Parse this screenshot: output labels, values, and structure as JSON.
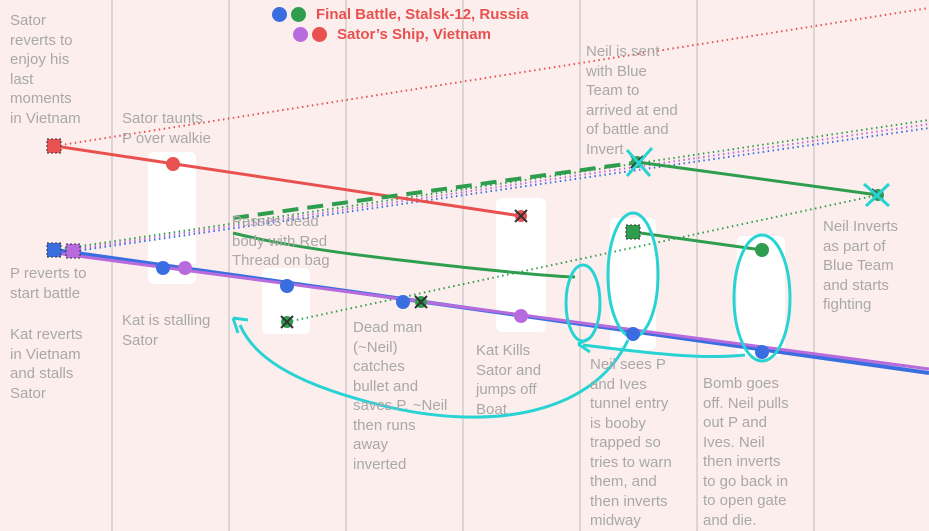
{
  "colors": {
    "red": "#e8514f",
    "green": "#2e9e4e",
    "blue": "#3a6ee0",
    "purple": "#b86bdc",
    "cyan": "#29d3d3",
    "text_gray": "#a8a8a8",
    "legend_red": "#e8514f",
    "background": "#fdeeee",
    "grid": "#bcbcbc",
    "card": "#ffffff"
  },
  "legend": [
    {
      "dots": [
        "blue",
        "green"
      ],
      "label": "Final Battle, Stalsk-12, Russia"
    },
    {
      "dots": [
        "purple",
        "red"
      ],
      "label": "Sator’s Ship, Vietnam"
    }
  ],
  "annotations": {
    "sator_reverts": "Sator\nreverts to\nenjoy his\nlast\nmoments\nin Vietnam",
    "sator_taunts": "Sator taunts\nP over walkie",
    "p_reverts": "P reverts to\nstart battle",
    "kat_reverts": "Kat reverts\nin Vietnam\nand stalls\nSator",
    "kat_stalling": "Kat is stalling\nSator",
    "passes_dead_body": "Passes dead\nbody with Red\nThread on bag",
    "dead_man": "Dead man\n(~Neil)\ncatches\nbullet and\nsaves P. ~Neil\nthen runs\naway\ninverted",
    "kat_kills": "Kat Kills\nSator and\njumps off\nBoat",
    "neil_sent": "Neil is sent\nwith Blue\nTeam to\narrived at end\nof battle and\nInvert",
    "neil_sees": "Neil sees P\nand Ives\ntunnel entry\nis booby\ntrapped so\ntries to warn\nthem, and\nthen inverts\nmidway",
    "bomb_goes_off": "Bomb goes\noff. Neil pulls\nout P and\nIves. Neil\nthen inverts\nto go back in\nto open gate\nand die.",
    "neil_inverts": "Neil Inverts\nas part of\nBlue Team\nand starts\nfighting"
  }
}
